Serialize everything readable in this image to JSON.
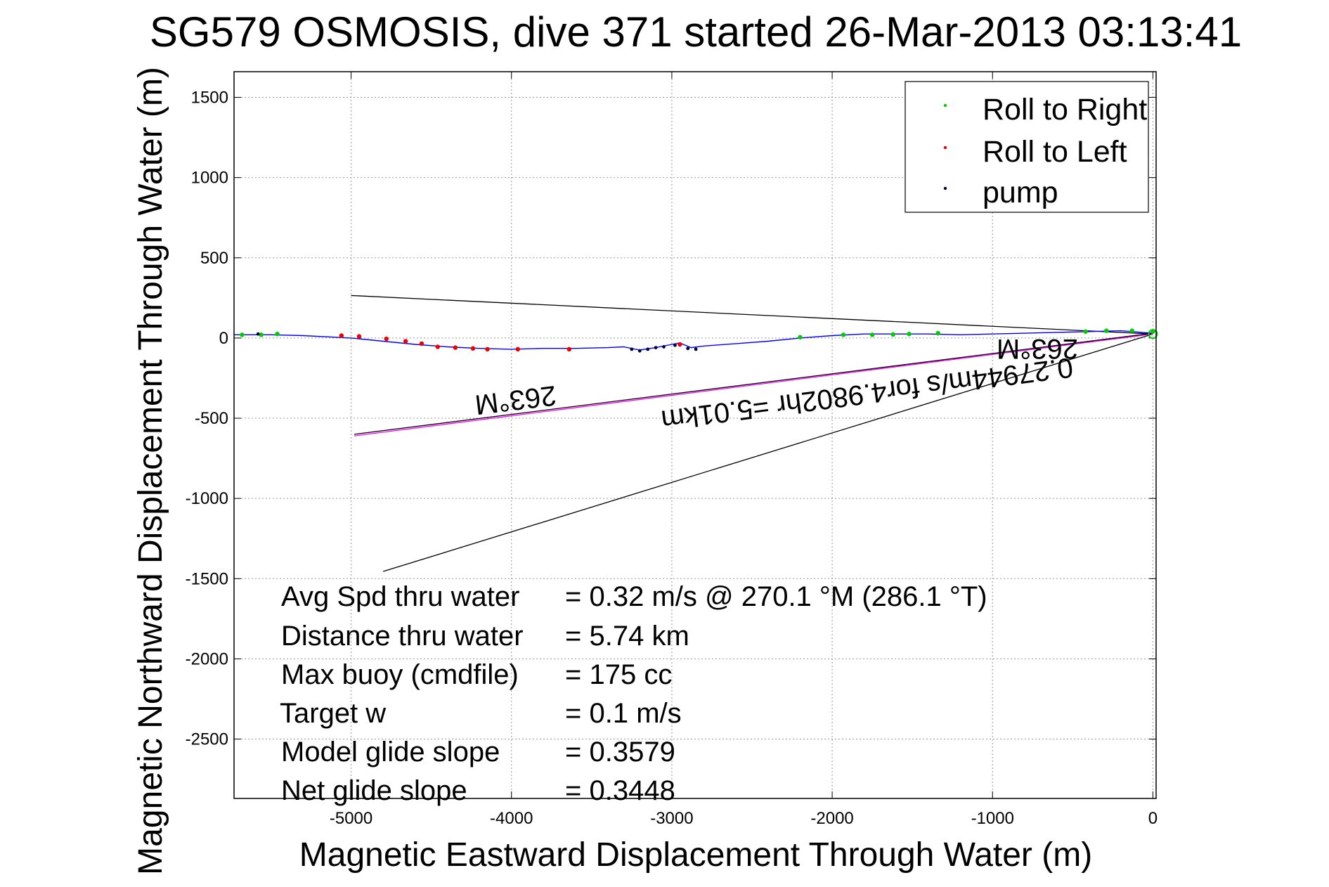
{
  "chart_data": {
    "type": "scatter",
    "title": "SG579 OSMOSIS, dive 371 started 26-Mar-2013 03:13:41",
    "xlabel": "Magnetic Eastward Displacement Through Water (m)",
    "ylabel": "Magnetic Northward Displacement Through Water (m)",
    "xlim": [
      -5730,
      20
    ],
    "ylim": [
      -2870,
      1660
    ],
    "xticks": [
      -5000,
      -4000,
      -3000,
      -2000,
      -1000,
      0
    ],
    "xtick_labels": [
      "-5000",
      "-4000",
      "-3000",
      "-2000",
      "-1000",
      "0"
    ],
    "yticks": [
      1500,
      1000,
      500,
      0,
      -500,
      -1000,
      -1500,
      -2000,
      -2500
    ],
    "ytick_labels": [
      "1500",
      "1000",
      "500",
      "0",
      "-500",
      "-1000",
      "-1500",
      "-2000",
      "-2500"
    ],
    "grid": true,
    "legend_position": "top-right",
    "legend": [
      {
        "label": "Roll to Right",
        "color": "#00cc00"
      },
      {
        "label": "Roll to Left",
        "color": "#ee0000"
      },
      {
        "label": "pump",
        "color": "#000044"
      }
    ],
    "track": {
      "color": "#0000ff",
      "x": [
        -5730,
        -5500,
        -5300,
        -5000,
        -4800,
        -4600,
        -4400,
        -4200,
        -4000,
        -3800,
        -3600,
        -3400,
        -3300,
        -3200,
        -3100,
        -3000,
        -2950,
        -2880,
        -2800,
        -2600,
        -2400,
        -2200,
        -2000,
        -1800,
        -1600,
        -1400,
        -1200,
        -1000,
        -800,
        -600,
        -400,
        -200,
        0
      ],
      "y": [
        20,
        20,
        15,
        0,
        -20,
        -40,
        -55,
        -65,
        -70,
        -65,
        -65,
        -60,
        -55,
        -75,
        -60,
        -40,
        -30,
        -60,
        -50,
        -35,
        -20,
        0,
        15,
        25,
        25,
        25,
        20,
        25,
        30,
        35,
        40,
        45,
        30
      ]
    },
    "roll_right": {
      "x": [
        -5680,
        -5560,
        -5460,
        -2200,
        -1930,
        -1750,
        -1620,
        -1520,
        -1340,
        -420,
        -290,
        -130,
        0
      ],
      "y": [
        20,
        20,
        25,
        5,
        20,
        20,
        22,
        25,
        30,
        40,
        45,
        45,
        40
      ]
    },
    "roll_left": {
      "x": [
        -5060,
        -4950,
        -4780,
        -4660,
        -4560,
        -4460,
        -4350,
        -4240,
        -4150,
        -3960,
        -3640,
        -2950
      ],
      "y": [
        15,
        10,
        -5,
        -20,
        -35,
        -55,
        -60,
        -65,
        -70,
        -70,
        -70,
        -40
      ]
    },
    "pump": {
      "x": [
        -5580,
        -3250,
        -3200,
        -3150,
        -3100,
        -3050,
        -2980,
        -2900,
        -2850
      ],
      "y": [
        25,
        -70,
        -80,
        -70,
        -60,
        -55,
        -45,
        -65,
        -70
      ]
    },
    "lines": [
      {
        "name": "upper-bearing",
        "color": "#000000",
        "x": [
          -5000,
          0
        ],
        "y": [
          265,
          25
        ]
      },
      {
        "name": "lower-bearing",
        "color": "#000000",
        "x": [
          -4800,
          0
        ],
        "y": [
          -1455,
          25
        ]
      },
      {
        "name": "magenta-heading",
        "color": "#ff00ff",
        "x": [
          -4980,
          0
        ],
        "y": [
          -610,
          25
        ]
      },
      {
        "name": "black-heading",
        "color": "#000000",
        "x": [
          -4980,
          0
        ],
        "y": [
          -600,
          30
        ]
      }
    ],
    "annotations": {
      "heading_top": "263°M",
      "heading_mid": "263°M",
      "speed_text": "0.27944m/s for4.9802hr =5.01km"
    },
    "stats": [
      {
        "label": "Avg Spd thru water",
        "value": "=  0.32 m/s @ 270.1 °M (286.1 °T)"
      },
      {
        "label": "Distance thru water",
        "value": "=  5.74 km"
      },
      {
        "label": "Max buoy (cmdfile)",
        "value": "= 175 cc"
      },
      {
        "label": "Target w",
        "value": "= 0.1 m/s"
      },
      {
        "label": "Model glide slope",
        "value": "= 0.3579"
      },
      {
        "label": "Net glide slope",
        "value": "= 0.3448"
      }
    ]
  }
}
